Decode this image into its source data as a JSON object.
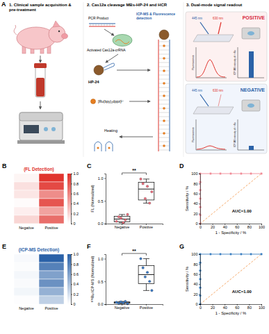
{
  "diagram": {
    "panel": "A",
    "sections": [
      {
        "title": "1. Clinical sample acquisition & pre-treatment"
      },
      {
        "title": "2. Cas12a cleavage MBs-HP-24 and HCR",
        "labels": [
          "PCR Product",
          "Activated Cas12a-crRNA",
          "ICP-MS & Fluorescence detection",
          "HP-24",
          "[Ru(bpy)₂dppz]²⁺",
          "Heating"
        ]
      },
      {
        "title": "3. Dual-mode signal readout",
        "labels": [
          "POSITIVE",
          "NEGATIVE",
          "445 nm",
          "630 nm",
          "Fluorescence",
          "ICP-MS intensity of ¹⁰¹Ru"
        ]
      }
    ]
  },
  "chart_data": [
    {
      "type": "heatmap",
      "panel": "B",
      "title": "(FL Detection)",
      "categories": [
        "Negative",
        "Positive"
      ],
      "cells": [
        [
          0.05,
          0.98
        ],
        [
          0.15,
          0.88
        ],
        [
          0.12,
          0.55
        ],
        [
          0.02,
          0.82
        ],
        [
          0.08,
          0.45
        ],
        [
          0.2,
          0.7
        ]
      ],
      "color": "#e0302a",
      "colorbar": {
        "range": [
          0,
          1
        ],
        "ticks": [
          0,
          0.2,
          0.4,
          0.6,
          0.8,
          {
            "value": 1,
            "label": "1.0"
          }
        ]
      }
    },
    {
      "type": "box",
      "panel": "C",
      "ylabel": "FL (Normalized)",
      "categories": [
        "Negative",
        "Positive"
      ],
      "points": [
        [
          0.05,
          0.15,
          0.12,
          0.02,
          0.08,
          0.2
        ],
        [
          0.98,
          0.88,
          0.55,
          0.82,
          0.45,
          0.7
        ]
      ],
      "q1": [
        0.04,
        0.52
      ],
      "median": [
        0.1,
        0.76
      ],
      "q3": [
        0.16,
        0.91
      ],
      "whisker_low": [
        0.02,
        0.45
      ],
      "whisker_high": [
        0.2,
        0.98
      ],
      "ylim": [
        0,
        1.1
      ],
      "yticks": [
        {
          "value": 0,
          "label": "0.0"
        },
        0.5,
        {
          "value": 1,
          "label": "1.0"
        }
      ],
      "annotation": "**",
      "color": "#e86b7a"
    },
    {
      "type": "line",
      "panel": "D",
      "xlabel": "1 - Specificity / %",
      "ylabel": "Sensitivity / %",
      "xlim": [
        0,
        100
      ],
      "ylim": [
        0,
        100
      ],
      "xticks": [
        0,
        20,
        40,
        60,
        80,
        100
      ],
      "yticks": [
        0,
        20,
        40,
        60,
        80,
        100
      ],
      "annotation": "AUC=1.00",
      "series": [
        {
          "x": [
            0,
            100
          ],
          "values": [
            0,
            100
          ],
          "color": "#f5a05a",
          "line_style": "dashed"
        },
        {
          "x": [
            0,
            0,
            0,
            0,
            0,
            0,
            0,
            17,
            33,
            50,
            67,
            83,
            100
          ],
          "values": [
            0,
            17,
            33,
            50,
            67,
            83,
            100,
            100,
            100,
            100,
            100,
            100,
            100
          ],
          "color": "#f08a96",
          "marker": "circle"
        }
      ]
    },
    {
      "type": "heatmap",
      "panel": "E",
      "title": "(ICP-MS Detection)",
      "categories": [
        "Negative",
        "Positive"
      ],
      "cells": [
        [
          0.04,
          1.0
        ],
        [
          0.02,
          0.8
        ],
        [
          0.05,
          0.6
        ],
        [
          0.03,
          0.7
        ],
        [
          0.06,
          0.5
        ],
        [
          0.01,
          0.3
        ]
      ],
      "color": "#2b62a8",
      "colorbar": {
        "range": [
          0,
          1
        ],
        "ticks": [
          0,
          0.2,
          0.4,
          0.6,
          0.8,
          {
            "value": 1,
            "label": "1.0"
          }
        ]
      }
    },
    {
      "type": "box",
      "panel": "F",
      "ylabel": "¹⁰¹Ru ICP-MS (Normalized)",
      "categories": [
        "Negative",
        "Positive"
      ],
      "points": [
        [
          0.04,
          0.02,
          0.05,
          0.03,
          0.06,
          0.01
        ],
        [
          1.0,
          0.8,
          0.6,
          0.7,
          0.5,
          0.3
        ]
      ],
      "q1": [
        0.02,
        0.45
      ],
      "median": [
        0.035,
        0.65
      ],
      "q3": [
        0.05,
        0.85
      ],
      "whisker_low": [
        0.01,
        0.3
      ],
      "whisker_high": [
        0.06,
        1.0
      ],
      "ylim": [
        0,
        1.1
      ],
      "yticks": [
        {
          "value": 0,
          "label": "0.0"
        },
        0.5,
        {
          "value": 1,
          "label": "1.0"
        }
      ],
      "annotation": "**",
      "color": "#3a78c2"
    },
    {
      "type": "line",
      "panel": "G",
      "xlabel": "1 - Specificity / %",
      "ylabel": "Sensitivity / %",
      "xlim": [
        0,
        100
      ],
      "ylim": [
        0,
        100
      ],
      "xticks": [
        0,
        20,
        40,
        60,
        80,
        100
      ],
      "yticks": [
        0,
        20,
        40,
        60,
        80,
        100
      ],
      "annotation": "AUC=1.00",
      "series": [
        {
          "x": [
            0,
            100
          ],
          "values": [
            0,
            100
          ],
          "color": "#f5a05a",
          "line_style": "dashed"
        },
        {
          "x": [
            0,
            0,
            0,
            0,
            0,
            0,
            0,
            17,
            33,
            50,
            67,
            83,
            100
          ],
          "values": [
            0,
            17,
            33,
            50,
            67,
            83,
            100,
            100,
            100,
            100,
            100,
            100,
            100
          ],
          "color": "#3a7fc1",
          "marker": "circle"
        }
      ]
    }
  ]
}
